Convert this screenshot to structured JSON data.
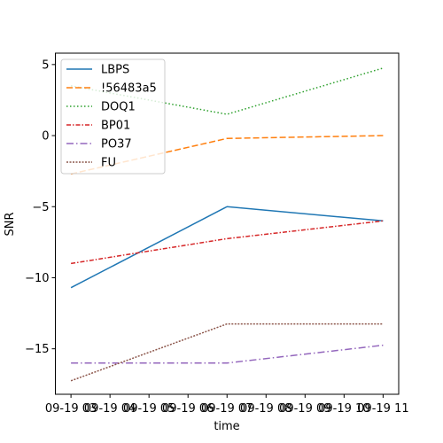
{
  "chart_data": {
    "type": "line",
    "xlabel": "time",
    "ylabel": "SNR",
    "x_tick_labels": [
      "09-19 03",
      "09-19 04",
      "09-19 05",
      "09-19 06",
      "09-19 07",
      "09-19 08",
      "09-19 09",
      "09-19 10",
      "09-19 11"
    ],
    "x_tick_hours": [
      3,
      4,
      5,
      6,
      7,
      8,
      9,
      10,
      11
    ],
    "xlim_hours": [
      2.6,
      11.4
    ],
    "ylim": [
      -18.2,
      5.8
    ],
    "yticks": [
      -15,
      -10,
      -5,
      0,
      5
    ],
    "ytick_labels": [
      "−15",
      "−10",
      "−5",
      "0",
      "5"
    ],
    "legend_position": "top-left",
    "series": [
      {
        "name": "LBPS",
        "x_hours": [
          3,
          7,
          11
        ],
        "values": [
          -10.7,
          -5.0,
          -6.0
        ],
        "color": "#1f77b4",
        "dash": ""
      },
      {
        "name": "!56483a5",
        "x_hours": [
          3,
          7,
          11
        ],
        "values": [
          -2.7,
          -0.2,
          0.0
        ],
        "color": "#ff7f0e",
        "dash": "7,3"
      },
      {
        "name": "DOQ1",
        "x_hours": [
          3,
          7,
          11
        ],
        "values": [
          3.5,
          1.5,
          4.75
        ],
        "color": "#2ca02c",
        "dash": "1.5,2.5"
      },
      {
        "name": "BP01",
        "x_hours": [
          3,
          7,
          11
        ],
        "values": [
          -9.0,
          -7.25,
          -6.0
        ],
        "color": "#d62728",
        "dash": "5,2,1.5,2"
      },
      {
        "name": "PO37",
        "x_hours": [
          3,
          7,
          11
        ],
        "values": [
          -16.0,
          -16.0,
          -14.75
        ],
        "color": "#9467bd",
        "dash": "8,3,1.5,3"
      },
      {
        "name": "FU",
        "x_hours": [
          3,
          7,
          11
        ],
        "values": [
          -17.25,
          -13.25,
          -13.25
        ],
        "color": "#8c564b",
        "dash": "2,1.5"
      }
    ]
  }
}
